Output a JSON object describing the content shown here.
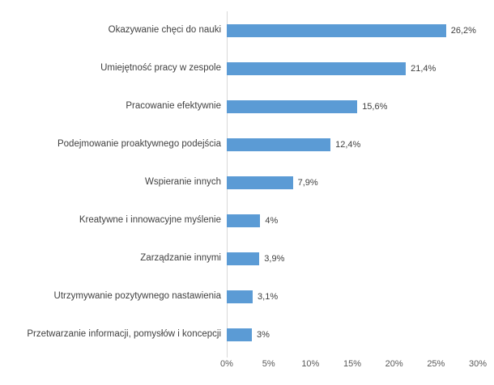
{
  "chart_data": {
    "type": "bar",
    "orientation": "horizontal",
    "title": "",
    "xlabel": "",
    "ylabel": "",
    "categories": [
      "Okazywanie chęci do nauki",
      "Umiejętność pracy w zespole",
      "Pracowanie efektywnie",
      "Podejmowanie proaktywnego podejścia",
      "Wspieranie innych",
      "Kreatywne i innowacyjne myślenie",
      "Zarządzanie innymi",
      "Utrzymywanie pozytywnego nastawienia",
      "Przetwarzanie informacji, pomysłów i koncepcji"
    ],
    "values": [
      26.2,
      21.4,
      15.6,
      12.4,
      7.9,
      4,
      3.9,
      3.1,
      3
    ],
    "value_labels": [
      "26,2%",
      "21,4%",
      "15,6%",
      "12,4%",
      "7,9%",
      "4%",
      "3,9%",
      "3,1%",
      "3%"
    ],
    "xlim": [
      0,
      30
    ],
    "x_tick_values": [
      0,
      5,
      10,
      15,
      20,
      25,
      30
    ],
    "x_tick_labels": [
      "0%",
      "5%",
      "10%",
      "15%",
      "20%",
      "25%",
      "30%"
    ],
    "grid": false,
    "legend": false,
    "colors": {
      "bar": "#5B9BD5",
      "axis_line": "#D9D9D9",
      "category_label": "#404040",
      "value_label": "#404040",
      "tick_label": "#595959"
    }
  }
}
